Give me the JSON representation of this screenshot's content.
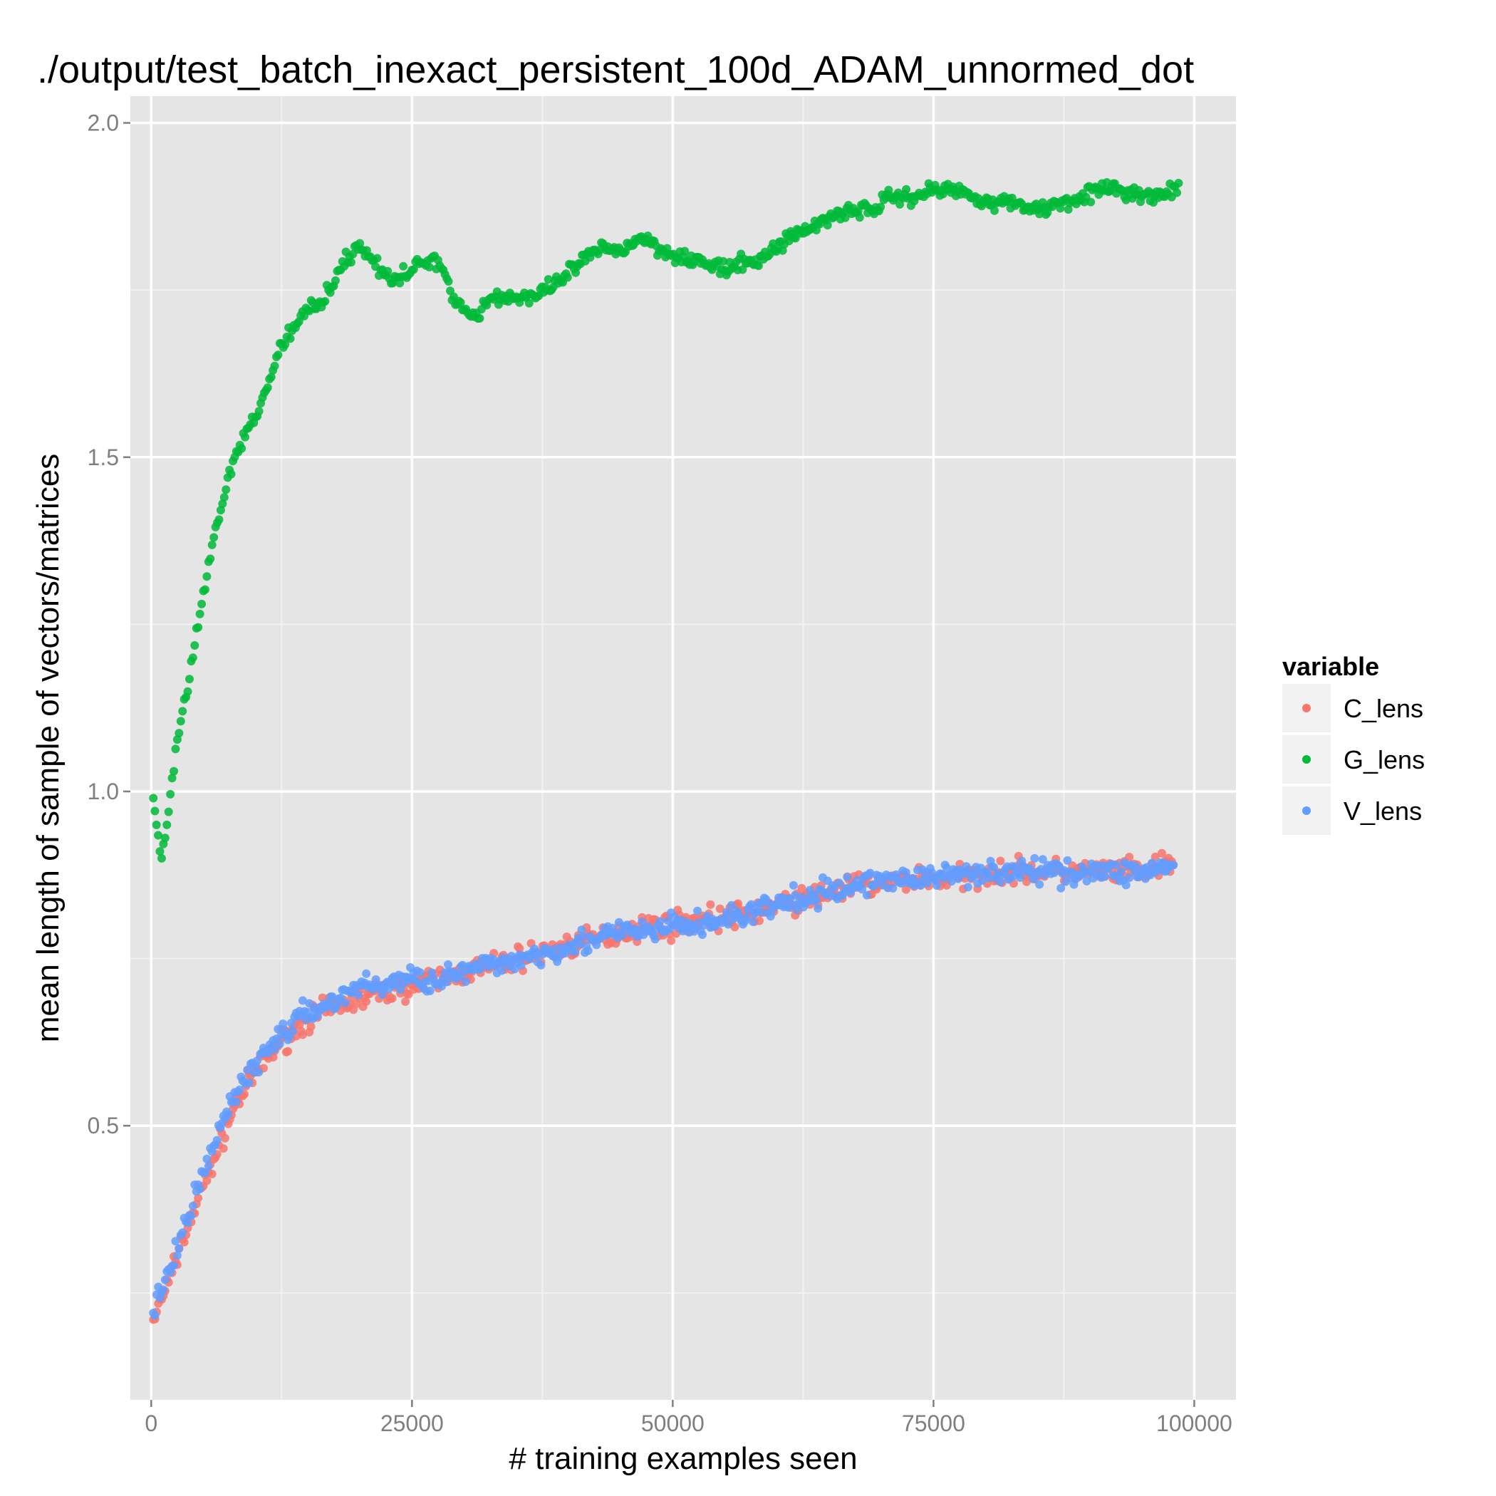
{
  "chart_data": {
    "type": "scatter",
    "title": "./output/test_batch_inexact_persistent_100d_ADAM_unnormed_dot",
    "xlabel": "# training examples seen",
    "ylabel": "mean length of sample of vectors/matrices",
    "xlim": [
      -2000,
      104000
    ],
    "ylim": [
      0.09,
      2.04
    ],
    "xticks": [
      0,
      25000,
      50000,
      75000,
      100000
    ],
    "xtick_labels": [
      "0",
      "25000",
      "50000",
      "75000",
      "100000"
    ],
    "yticks": [
      0.5,
      1.0,
      1.5,
      2.0
    ],
    "ytick_labels": [
      "0.5",
      "1.0",
      "1.5",
      "2.0"
    ],
    "grid": true,
    "legend": {
      "title": "variable",
      "placement": "right"
    },
    "colors": {
      "C_lens": "#f8766d",
      "G_lens": "#00ba38",
      "V_lens": "#619cff"
    },
    "series": [
      {
        "name": "C_lens",
        "color": "#f8766d",
        "x": [
          200,
          1000,
          2000,
          3000,
          4000,
          5000,
          6000,
          8000,
          10000,
          12000,
          15000,
          18000,
          20000,
          22000,
          25000,
          28000,
          30000,
          33000,
          35000,
          38000,
          40000,
          43000,
          45000,
          48000,
          50000,
          53000,
          55000,
          58000,
          60000,
          63000,
          65000,
          68000,
          70000,
          73000,
          75000,
          78000,
          80000,
          83000,
          85000,
          88000,
          90000,
          93000,
          95000,
          98000
        ],
        "y": [
          0.21,
          0.24,
          0.28,
          0.33,
          0.37,
          0.41,
          0.45,
          0.53,
          0.58,
          0.62,
          0.66,
          0.68,
          0.69,
          0.7,
          0.71,
          0.72,
          0.73,
          0.74,
          0.75,
          0.76,
          0.77,
          0.78,
          0.79,
          0.8,
          0.8,
          0.81,
          0.81,
          0.82,
          0.83,
          0.84,
          0.85,
          0.86,
          0.86,
          0.87,
          0.87,
          0.87,
          0.88,
          0.88,
          0.88,
          0.88,
          0.88,
          0.88,
          0.88,
          0.89
        ]
      },
      {
        "name": "G_lens",
        "color": "#00ba38",
        "x": [
          200,
          500,
          1000,
          1500,
          2000,
          3000,
          4000,
          5000,
          6000,
          7000,
          8000,
          9000,
          10000,
          11000,
          12000,
          13000,
          14000,
          15000,
          16000,
          17000,
          18000,
          19000,
          20000,
          21000,
          22000,
          23000,
          24000,
          25000,
          26000,
          27000,
          28000,
          29000,
          30000,
          31000,
          32000,
          33000,
          35000,
          37000,
          39000,
          41000,
          43000,
          45000,
          47000,
          49000,
          51000,
          53000,
          55000,
          57000,
          59000,
          61000,
          63000,
          65000,
          67000,
          69000,
          71000,
          73000,
          75000,
          77000,
          79000,
          81000,
          83000,
          85000,
          87000,
          89000,
          91000,
          93000,
          95000,
          97000,
          98500
        ],
        "y": [
          0.99,
          0.95,
          0.9,
          0.95,
          1.02,
          1.12,
          1.2,
          1.3,
          1.38,
          1.44,
          1.5,
          1.53,
          1.56,
          1.6,
          1.65,
          1.68,
          1.7,
          1.72,
          1.73,
          1.75,
          1.78,
          1.8,
          1.82,
          1.8,
          1.78,
          1.76,
          1.77,
          1.78,
          1.79,
          1.8,
          1.78,
          1.74,
          1.72,
          1.71,
          1.73,
          1.74,
          1.74,
          1.74,
          1.76,
          1.79,
          1.81,
          1.81,
          1.83,
          1.81,
          1.8,
          1.79,
          1.78,
          1.79,
          1.8,
          1.83,
          1.84,
          1.86,
          1.87,
          1.87,
          1.89,
          1.89,
          1.9,
          1.9,
          1.89,
          1.88,
          1.88,
          1.87,
          1.88,
          1.89,
          1.9,
          1.9,
          1.89,
          1.89,
          1.91
        ]
      },
      {
        "name": "V_lens",
        "color": "#619cff",
        "x": [
          200,
          1000,
          2000,
          3000,
          4000,
          5000,
          6000,
          8000,
          10000,
          12000,
          15000,
          18000,
          20000,
          22000,
          25000,
          28000,
          30000,
          33000,
          35000,
          38000,
          40000,
          43000,
          45000,
          48000,
          50000,
          53000,
          55000,
          58000,
          60000,
          63000,
          65000,
          68000,
          70000,
          73000,
          75000,
          78000,
          80000,
          83000,
          85000,
          88000,
          90000,
          93000,
          95000,
          98000
        ],
        "y": [
          0.22,
          0.25,
          0.29,
          0.34,
          0.38,
          0.43,
          0.47,
          0.55,
          0.59,
          0.63,
          0.67,
          0.69,
          0.71,
          0.71,
          0.72,
          0.72,
          0.73,
          0.74,
          0.75,
          0.76,
          0.77,
          0.78,
          0.79,
          0.79,
          0.8,
          0.8,
          0.81,
          0.82,
          0.83,
          0.84,
          0.85,
          0.86,
          0.87,
          0.87,
          0.87,
          0.88,
          0.88,
          0.88,
          0.88,
          0.88,
          0.88,
          0.88,
          0.88,
          0.89
        ]
      }
    ]
  }
}
